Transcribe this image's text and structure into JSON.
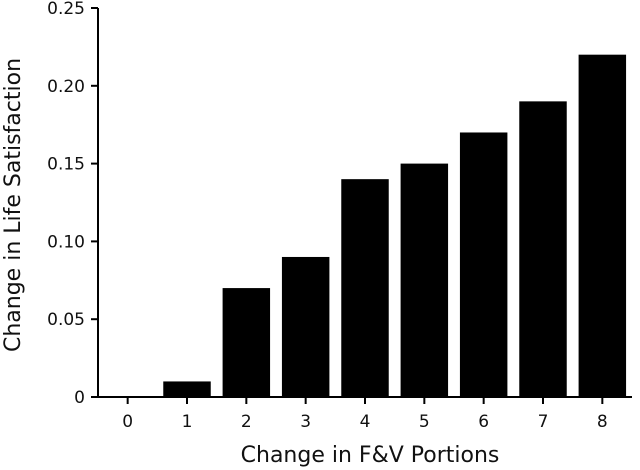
{
  "chart_data": {
    "type": "bar",
    "title": "",
    "xlabel": "Change in F&V Portions",
    "ylabel": "Change in Life Satisfaction",
    "categories": [
      "0",
      "1",
      "2",
      "3",
      "4",
      "5",
      "6",
      "7",
      "8"
    ],
    "values": [
      0,
      0.01,
      0.07,
      0.09,
      0.14,
      0.15,
      0.17,
      0.19,
      0.22
    ],
    "ylim": [
      0,
      0.25
    ],
    "yticks": [
      "0",
      "0.05",
      "0.10",
      "0.15",
      "0.20",
      "0.25"
    ],
    "grid": false,
    "bar_color": "#000000",
    "axis_color": "#000000"
  }
}
